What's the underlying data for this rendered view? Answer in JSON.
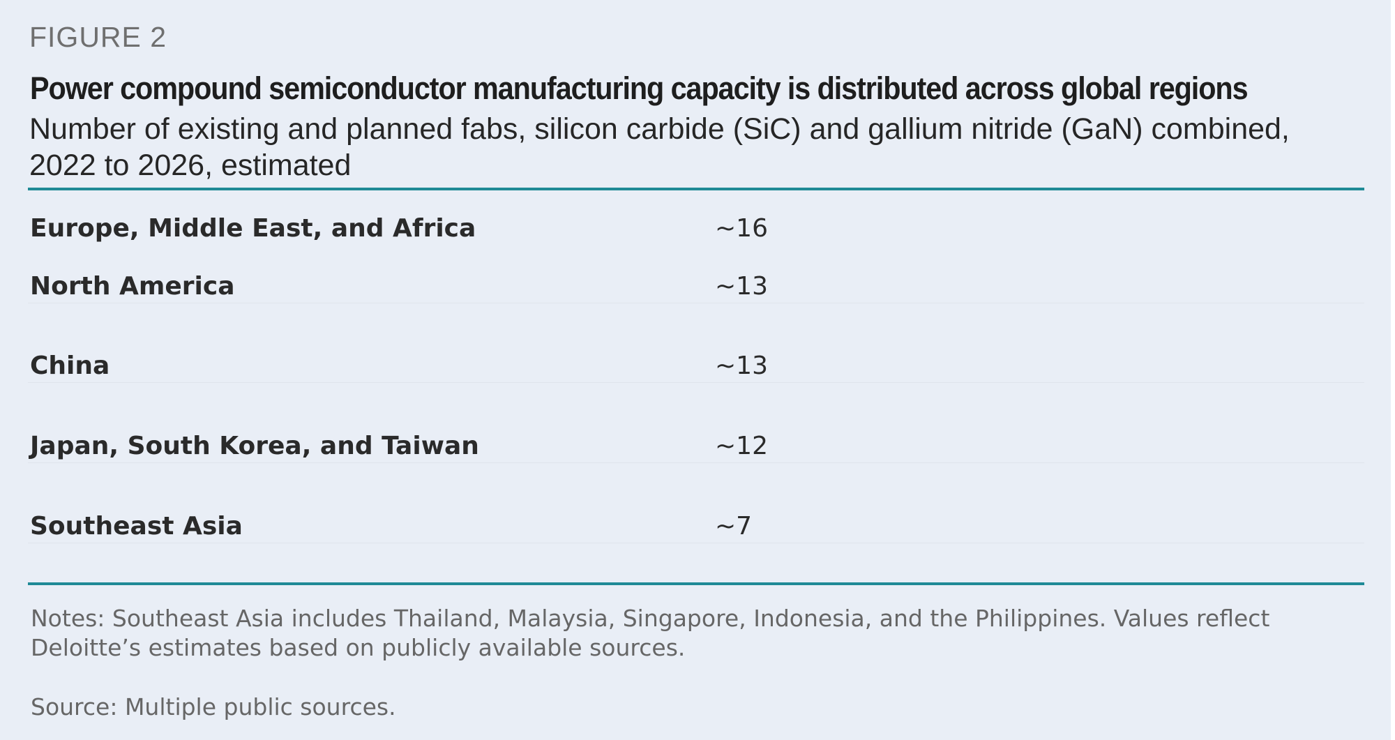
{
  "figure_label": "FIGURE 2",
  "title": "Power compound semiconductor manufacturing capacity is distributed across global regions",
  "subtitle": "Number of existing and planned fabs, silicon carbide (SiC) and gallium nitride (GaN) combined, 2022 to 2026, estimated",
  "notes": "Notes: Southeast Asia includes Thailand, Malaysia, Singapore, Indonesia, and the Philippines. Values reflect Deloitte’s estimates based on publicly available sources.",
  "source": "Source: Multiple public sources.",
  "colors": {
    "background": "#e9eef6",
    "rule": "#1f8a96",
    "text": "#222222",
    "muted": "#666666"
  },
  "chart_data": {
    "type": "table",
    "title": "Power compound semiconductor manufacturing capacity is distributed across global regions",
    "subtitle": "Number of existing and planned fabs, silicon carbide (SiC) and gallium nitride (GaN) combined, 2022 to 2026, estimated",
    "rows": [
      {
        "region": "Europe, Middle East, and Africa",
        "value_label": "~16",
        "value": 16
      },
      {
        "region": "North America",
        "value_label": "~13",
        "value": 13
      },
      {
        "region": "China",
        "value_label": "~13",
        "value": 13
      },
      {
        "region": "Japan, South Korea, and Taiwan",
        "value_label": "~12",
        "value": 12
      },
      {
        "region": "Southeast Asia",
        "value_label": "~7",
        "value": 7
      }
    ]
  }
}
